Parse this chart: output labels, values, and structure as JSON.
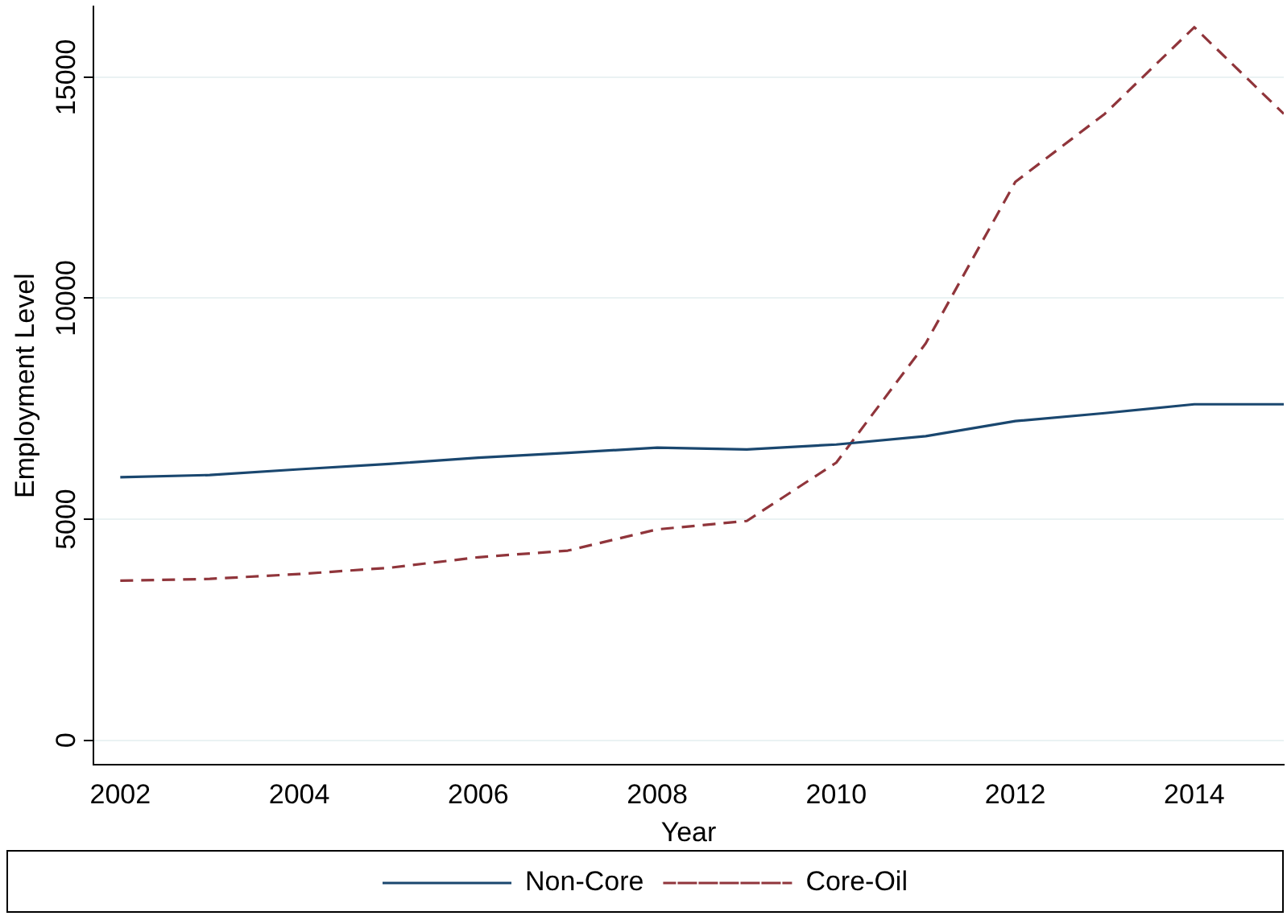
{
  "chart_data": {
    "type": "line",
    "xlabel": "Year",
    "ylabel": "Employment Level",
    "x": [
      2002,
      2003,
      2004,
      2005,
      2006,
      2007,
      2008,
      2009,
      2010,
      2011,
      2012,
      2013,
      2014,
      2015
    ],
    "series": [
      {
        "name": "Non-Core",
        "color": "#1a476f",
        "line_style": "solid",
        "values": [
          5950,
          6000,
          6130,
          6250,
          6390,
          6500,
          6620,
          6580,
          6690,
          6880,
          7220,
          7400,
          7600,
          7600
        ]
      },
      {
        "name": "Core-Oil",
        "color": "#90353b",
        "line_style": "dashed",
        "values": [
          3610,
          3650,
          3760,
          3900,
          4140,
          4290,
          4770,
          4960,
          6280,
          8980,
          12630,
          14170,
          16130,
          14170
        ]
      }
    ],
    "xlim": [
      2001.7,
      2015
    ],
    "xticks": [
      2002,
      2004,
      2006,
      2008,
      2010,
      2012,
      2014
    ],
    "ylim": [
      -560,
      16600
    ],
    "yticks": [
      0,
      5000,
      10000,
      15000
    ],
    "grid": "y",
    "legend": "bottom",
    "marker": "none"
  }
}
